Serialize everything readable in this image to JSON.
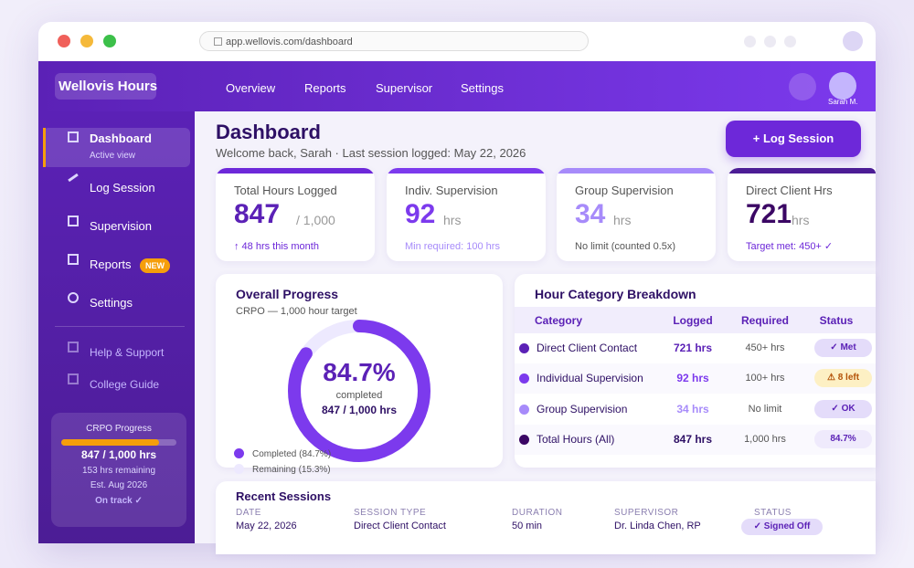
{
  "browser": {
    "url": "app.wellovis.com/dashboard"
  },
  "header": {
    "brand": "Wellovis Hours",
    "nav": [
      "Overview",
      "Reports",
      "Supervisor",
      "Settings"
    ],
    "user": "Sarah M."
  },
  "sidebar": {
    "items": [
      {
        "label": "Dashboard",
        "sub": "Active view"
      },
      {
        "label": "Log Session"
      },
      {
        "label": "Supervision"
      },
      {
        "label": "Reports",
        "badge": "NEW"
      },
      {
        "label": "Settings"
      }
    ],
    "secondary": [
      "Help & Support",
      "College Guide"
    ],
    "progress": {
      "title": "CRPO Progress",
      "hours": "847 / 1,000 hrs",
      "remaining": "153 hrs remaining",
      "est": "Est. Aug 2026",
      "status": "On track ✓"
    }
  },
  "page": {
    "title": "Dashboard",
    "subtitle": "Welcome back, Sarah · Last session logged: May 22, 2026",
    "action": "+ Log Session"
  },
  "stats": [
    {
      "label": "Total Hours Logged",
      "value": "847",
      "unit": "/ 1,000",
      "note": "↑ 48 hrs this month"
    },
    {
      "label": "Indiv. Supervision",
      "value": "92",
      "unit": "hrs",
      "note": "Min required: 100 hrs"
    },
    {
      "label": "Group Supervision",
      "value": "34",
      "unit": "hrs",
      "note": "No limit (counted 0.5x)"
    },
    {
      "label": "Direct Client Hrs",
      "value": "721",
      "unit": "hrs",
      "note": "Target met: 450+ ✓"
    }
  ],
  "progress": {
    "title": "Overall Progress",
    "subtitle": "CRPO — 1,000 hour target",
    "percent": {
      "value": 84.7,
      "label": "84.7%"
    },
    "caption": "completed",
    "hours": "847 / 1,000 hrs",
    "legend": [
      "Completed (84.7%)",
      "Remaining (15.3%)"
    ]
  },
  "breakdown": {
    "title": "Hour Category Breakdown",
    "columns": [
      "Category",
      "Logged",
      "Required",
      "Status"
    ],
    "rows": [
      [
        "Direct Client Contact",
        "721 hrs",
        "450+ hrs",
        "✓ Met"
      ],
      [
        "Individual Supervision",
        "92 hrs",
        "100+ hrs",
        "⚠ 8 left"
      ],
      [
        "Group Supervision",
        "34 hrs",
        "No limit",
        "✓ OK"
      ],
      [
        "Total Hours (All)",
        "847 hrs",
        "1,000 hrs",
        "84.7%"
      ]
    ]
  },
  "sessions": {
    "title": "Recent Sessions",
    "columns": [
      "DATE",
      "SESSION TYPE",
      "DURATION",
      "SUPERVISOR",
      "STATUS"
    ],
    "rows": [
      [
        "May 22, 2026",
        "Direct Client Contact",
        "50 min",
        "Dr. Linda Chen, RP",
        "✓ Signed Off"
      ]
    ]
  }
}
